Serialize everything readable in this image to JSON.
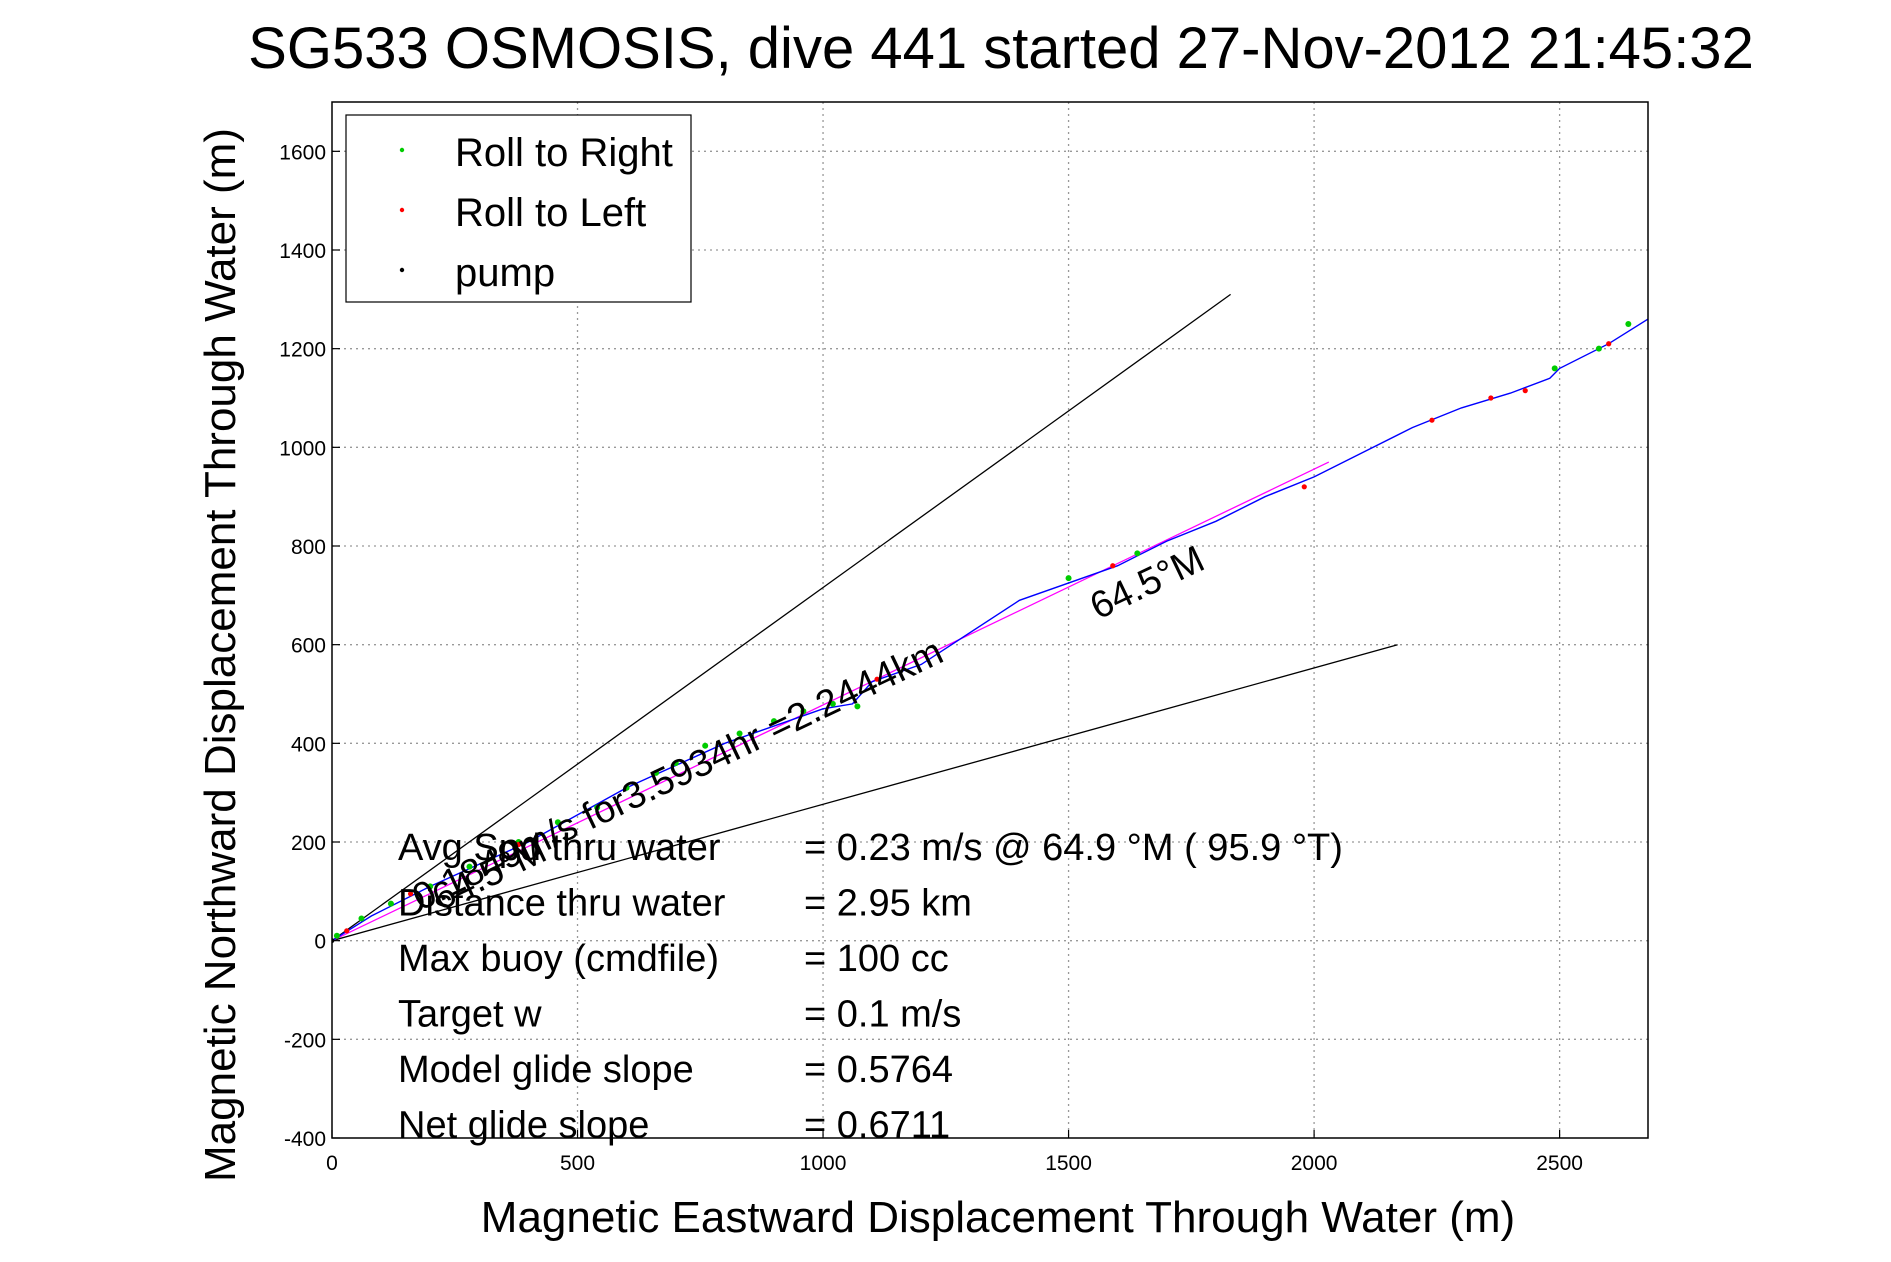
{
  "title": "SG533 OSMOSIS, dive 441 started 27-Nov-2012 21:45:32",
  "chart_data": {
    "type": "line",
    "title": "SG533 OSMOSIS, dive 441 started 27-Nov-2012 21:45:32",
    "xlabel": "Magnetic Eastward Displacement Through Water (m)",
    "ylabel": "Magnetic Northward Displacement Through Water (m)",
    "xlim": [
      0,
      2680
    ],
    "ylim": [
      -400,
      1700
    ],
    "xticks": [
      0,
      500,
      1000,
      1500,
      2000,
      2500
    ],
    "yticks": [
      -400,
      -200,
      0,
      200,
      400,
      600,
      800,
      1000,
      1200,
      1400,
      1600
    ],
    "grid": true,
    "legend_position": "top-left",
    "legend": [
      {
        "label": "Roll to Right",
        "color": "#00cc00",
        "marker": "point"
      },
      {
        "label": "Roll to Left",
        "color": "#ff0000",
        "marker": "point"
      },
      {
        "label": "pump",
        "color": "#000000",
        "marker": "point"
      }
    ],
    "track": {
      "color": "#0000ff",
      "x": [
        0,
        80,
        200,
        400,
        600,
        800,
        1000,
        1060,
        1100,
        1200,
        1400,
        1600,
        1700,
        1800,
        1900,
        2000,
        2100,
        2200,
        2300,
        2400,
        2480,
        2500,
        2600,
        2680
      ],
      "y": [
        0,
        50,
        110,
        200,
        310,
        400,
        470,
        480,
        525,
        560,
        690,
        760,
        810,
        850,
        900,
        940,
        990,
        1040,
        1080,
        1110,
        1140,
        1160,
        1210,
        1260
      ]
    },
    "roll_right": {
      "color": "#00cc00",
      "x": [
        10,
        60,
        120,
        200,
        280,
        380,
        460,
        540,
        600,
        660,
        700,
        760,
        830,
        900,
        960,
        1020,
        1070,
        1500,
        1640,
        2490,
        2580,
        2640
      ],
      "y": [
        10,
        45,
        75,
        110,
        150,
        200,
        240,
        270,
        310,
        340,
        360,
        395,
        420,
        445,
        465,
        480,
        475,
        735,
        785,
        1160,
        1200,
        1250
      ]
    },
    "roll_left": {
      "color": "#ff0000",
      "x": [
        30,
        160,
        380,
        1110,
        1590,
        1980,
        2240,
        2360,
        2430,
        2600
      ],
      "y": [
        20,
        95,
        195,
        530,
        760,
        920,
        1055,
        1100,
        1115,
        1210
      ]
    },
    "pump": {
      "color": "#000000",
      "x": [
        0
      ],
      "y": [
        0
      ]
    },
    "reference_lines": [
      {
        "name": "upper",
        "color": "#000000",
        "x": [
          0,
          1830
        ],
        "y": [
          0,
          1310
        ]
      },
      {
        "name": "lower",
        "color": "#000000",
        "x": [
          0,
          2170
        ],
        "y": [
          0,
          600
        ]
      },
      {
        "name": "net",
        "color": "#ff00ff",
        "x": [
          0,
          2030
        ],
        "y": [
          0,
          970
        ]
      }
    ],
    "annotations": [
      {
        "text": "0.1849m/s for3.5934hr =2.2444km",
        "x": 180,
        "y": 60,
        "angle_deg": 25.5
      },
      {
        "text": "64.5°M",
        "x": 1560,
        "y": 650,
        "angle_deg": 25.5
      },
      {
        "text": "64.5°M",
        "x": 220,
        "y": 60,
        "angle_deg": 25.5
      }
    ],
    "stats": [
      {
        "label": "Avg Spd thru water",
        "value": "=  0.23 m/s @  64.9 °M ( 95.9 °T)"
      },
      {
        "label": "Distance thru water",
        "value": "=  2.95 km"
      },
      {
        "label": "Max buoy (cmdfile)",
        "value": "= 100 cc"
      },
      {
        "label": "Target w",
        "value": "= 0.1 m/s"
      },
      {
        "label": "Model glide slope",
        "value": "= 0.5764"
      },
      {
        "label": "Net glide slope",
        "value": "= 0.6711"
      }
    ]
  }
}
